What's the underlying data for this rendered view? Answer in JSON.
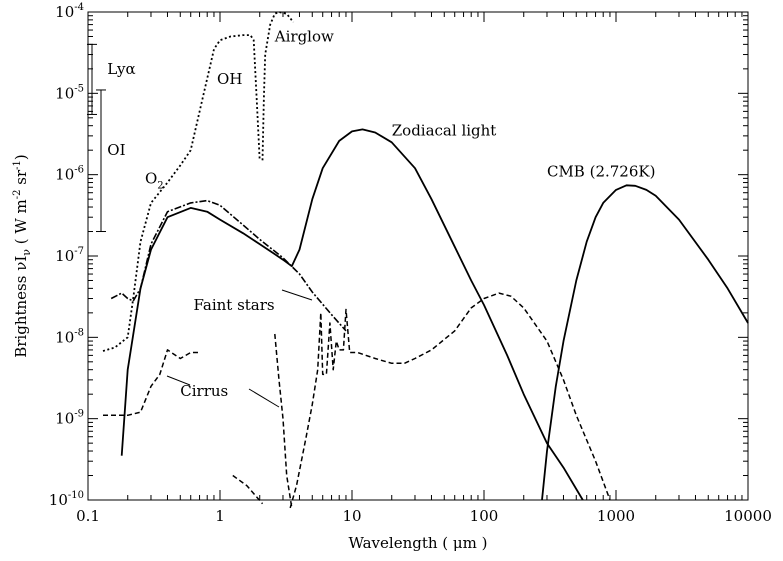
{
  "chart_data": {
    "type": "line",
    "xscale": "log",
    "yscale": "log",
    "xlim": [
      0.1,
      10000
    ],
    "ylim": [
      1e-10,
      0.0001
    ],
    "xlabel": "Wavelength ( μm )",
    "ylabel": "Brightness νI",
    "ylabel_sub": "ν",
    "ylabel_unit": " ( W m",
    "ylabel_exp1": "-2",
    "ylabel_mid": " sr",
    "ylabel_exp2": "-1",
    "ylabel_end": ")",
    "x_ticks": [
      {
        "value": 0.1,
        "label": "0.1"
      },
      {
        "value": 1,
        "label": "1"
      },
      {
        "value": 10,
        "label": "10"
      },
      {
        "value": 100,
        "label": "100"
      },
      {
        "value": 1000,
        "label": "1000"
      },
      {
        "value": 10000,
        "label": "10000"
      }
    ],
    "y_ticks": [
      {
        "value": 1e-10,
        "base": "10",
        "exp": "-10"
      },
      {
        "value": 1e-09,
        "base": "10",
        "exp": "-9"
      },
      {
        "value": 1e-08,
        "base": "10",
        "exp": "-8"
      },
      {
        "value": 1e-07,
        "base": "10",
        "exp": "-7"
      },
      {
        "value": 1e-06,
        "base": "10",
        "exp": "-6"
      },
      {
        "value": 1e-05,
        "base": "10",
        "exp": "-5"
      },
      {
        "value": 0.0001,
        "base": "10",
        "exp": "-4"
      }
    ],
    "series": [
      {
        "name": "Airglow",
        "style": "dotted",
        "points": [
          [
            0.13,
            6.8e-09
          ],
          [
            0.16,
            7.5e-09
          ],
          [
            0.2,
            1e-08
          ],
          [
            0.22,
            3e-08
          ],
          [
            0.25,
            1.5e-07
          ],
          [
            0.3,
            4.5e-07
          ],
          [
            0.4,
            8e-07
          ],
          [
            0.5,
            1.3e-06
          ],
          [
            0.6,
            2e-06
          ],
          [
            0.7,
            6e-06
          ],
          [
            0.9,
            3.5e-05
          ],
          [
            1.0,
            4.5e-05
          ],
          [
            1.2,
            5e-05
          ],
          [
            1.5,
            5.2e-05
          ],
          [
            1.7,
            5.2e-05
          ],
          [
            1.8,
            4.5e-05
          ],
          [
            1.9,
            8e-06
          ],
          [
            2.0,
            1.5e-06
          ]
        ],
        "segments": [
          [
            [
              2.1,
              1.5e-06
            ],
            [
              2.15,
              9e-06
            ],
            [
              2.2,
              3e-05
            ],
            [
              2.4,
              7e-05
            ],
            [
              2.6,
              9.5e-05
            ],
            [
              2.8,
              0.0001
            ],
            [
              3.2,
              9.5e-05
            ],
            [
              3.6,
              7.5e-05
            ]
          ]
        ]
      },
      {
        "name": "Zodiacal light",
        "style": "solid",
        "points": [
          [
            0.18,
            3.5e-10
          ],
          [
            0.2,
            4e-09
          ],
          [
            0.25,
            4e-08
          ],
          [
            0.3,
            1.2e-07
          ],
          [
            0.4,
            3e-07
          ],
          [
            0.6,
            3.9e-07
          ],
          [
            0.8,
            3.5e-07
          ],
          [
            1.0,
            2.8e-07
          ],
          [
            1.5,
            1.9e-07
          ],
          [
            2,
            1.4e-07
          ],
          [
            2.5,
            1.1e-07
          ],
          [
            3,
            9e-08
          ],
          [
            3.5,
            7.5e-08
          ],
          [
            4,
            1.2e-07
          ],
          [
            5,
            5e-07
          ],
          [
            6,
            1.2e-06
          ],
          [
            8,
            2.6e-06
          ],
          [
            10,
            3.4e-06
          ],
          [
            12,
            3.6e-06
          ],
          [
            15,
            3.3e-06
          ],
          [
            20,
            2.5e-06
          ],
          [
            30,
            1.2e-06
          ],
          [
            40,
            5e-07
          ],
          [
            60,
            1.3e-07
          ],
          [
            80,
            5e-08
          ],
          [
            100,
            2.5e-08
          ],
          [
            150,
            6e-09
          ],
          [
            200,
            2e-09
          ],
          [
            300,
            5e-10
          ],
          [
            400,
            2.5e-10
          ],
          [
            560,
            1e-10
          ]
        ]
      },
      {
        "name": "Faint stars",
        "style": "dashdot",
        "points": [
          [
            0.15,
            3e-08
          ],
          [
            0.18,
            3.5e-08
          ],
          [
            0.2,
            3e-08
          ],
          [
            0.22,
            2.8e-08
          ],
          [
            0.25,
            4e-08
          ],
          [
            0.3,
            1.4e-07
          ],
          [
            0.4,
            3.5e-07
          ],
          [
            0.6,
            4.5e-07
          ],
          [
            0.8,
            4.8e-07
          ],
          [
            1,
            4.2e-07
          ],
          [
            1.5,
            2.4e-07
          ],
          [
            2,
            1.6e-07
          ],
          [
            3,
            9.5e-08
          ],
          [
            4,
            6e-08
          ],
          [
            5,
            3.6e-08
          ],
          [
            7,
            1.9e-08
          ],
          [
            9,
            1.2e-08
          ]
        ]
      },
      {
        "name": "Cirrus",
        "style": "dashed",
        "points": [
          [
            0.13,
            1.1e-09
          ],
          [
            0.2,
            1.1e-09
          ],
          [
            0.25,
            1.2e-09
          ],
          [
            0.3,
            2.5e-09
          ],
          [
            0.35,
            3.5e-09
          ],
          [
            0.4,
            7e-09
          ],
          [
            0.5,
            5.5e-09
          ],
          [
            0.6,
            6.5e-09
          ],
          [
            0.7,
            6.5e-09
          ]
        ],
        "segments": [
          [
            [
              1.25,
              2e-10
            ],
            [
              1.6,
              1.5e-10
            ],
            [
              2.1,
              9e-11
            ]
          ],
          [
            [
              2.6,
              1.1e-08
            ],
            [
              2.8,
              3e-09
            ],
            [
              3.0,
              1e-09
            ],
            [
              3.2,
              2e-10
            ],
            [
              3.5,
              8e-11
            ]
          ],
          [
            [
              3.4,
              8e-11
            ],
            [
              3.8,
              1.5e-10
            ],
            [
              4.5,
              6e-10
            ],
            [
              5,
              1.5e-09
            ],
            [
              5.5,
              4e-09
            ],
            [
              5.8,
              2e-08
            ],
            [
              6.0,
              3.5e-09
            ],
            [
              6.4,
              3.5e-09
            ],
            [
              6.8,
              1.5e-08
            ],
            [
              7.2,
              4e-09
            ],
            [
              7.6,
              9e-09
            ],
            [
              8,
              7e-09
            ],
            [
              8.6,
              7e-09
            ],
            [
              9,
              2.2e-08
            ],
            [
              9.6,
              6.5e-09
            ],
            [
              11,
              6.5e-09
            ],
            [
              15,
              5.5e-09
            ],
            [
              20,
              4.8e-09
            ],
            [
              25,
              4.8e-09
            ],
            [
              30,
              5.5e-09
            ],
            [
              40,
              7e-09
            ],
            [
              60,
              1.2e-08
            ],
            [
              80,
              2.3e-08
            ],
            [
              100,
              3e-08
            ],
            [
              130,
              3.5e-08
            ],
            [
              160,
              3.2e-08
            ],
            [
              200,
              2.3e-08
            ],
            [
              300,
              9e-09
            ],
            [
              400,
              3e-09
            ],
            [
              500,
              1.1e-09
            ],
            [
              700,
              3e-10
            ],
            [
              900,
              1e-10
            ]
          ]
        ]
      },
      {
        "name": "CMB (2.726K)",
        "style": "solid",
        "points": [
          [
            275,
            1e-10
          ],
          [
            300,
            4e-10
          ],
          [
            350,
            2.5e-09
          ],
          [
            400,
            9e-09
          ],
          [
            500,
            5e-08
          ],
          [
            600,
            1.5e-07
          ],
          [
            700,
            3e-07
          ],
          [
            800,
            4.5e-07
          ],
          [
            1000,
            6.5e-07
          ],
          [
            1200,
            7.4e-07
          ],
          [
            1400,
            7.3e-07
          ],
          [
            1700,
            6.5e-07
          ],
          [
            2000,
            5.5e-07
          ],
          [
            3000,
            2.8e-07
          ],
          [
            5000,
            9e-08
          ],
          [
            7000,
            4e-08
          ],
          [
            10000,
            1.5e-08
          ]
        ]
      }
    ],
    "range_bars": [
      {
        "name": "Lyα",
        "low": 5.5e-06,
        "high": 4e-05
      },
      {
        "name": "OI",
        "low": 2e-07,
        "high": 1.1e-05
      }
    ],
    "annotations": [
      {
        "id": "lya",
        "text": "Lyα",
        "x": 0.14,
        "y": 2e-05
      },
      {
        "id": "oi",
        "text": "OI",
        "x": 0.14,
        "y": 2e-06
      },
      {
        "id": "o2",
        "text": "O",
        "sub": "2",
        "x": 0.27,
        "y": 9e-07
      },
      {
        "id": "oh",
        "text": "OH",
        "x": 0.95,
        "y": 1.5e-05
      },
      {
        "id": "airglow",
        "text": "Airglow",
        "x": 2.6,
        "y": 5e-05
      },
      {
        "id": "zodi",
        "text": "Zodiacal light",
        "x": 20,
        "y": 3.5e-06
      },
      {
        "id": "cmb",
        "text": "CMB (2.726K)",
        "x": 300,
        "y": 1.1e-06
      },
      {
        "id": "faint",
        "text": "Faint stars",
        "x": 0.63,
        "y": 2.5e-08
      },
      {
        "id": "cirrus",
        "text": "Cirrus",
        "x": 0.5,
        "y": 2.2e-09
      }
    ],
    "grid": false,
    "legend": "none"
  }
}
